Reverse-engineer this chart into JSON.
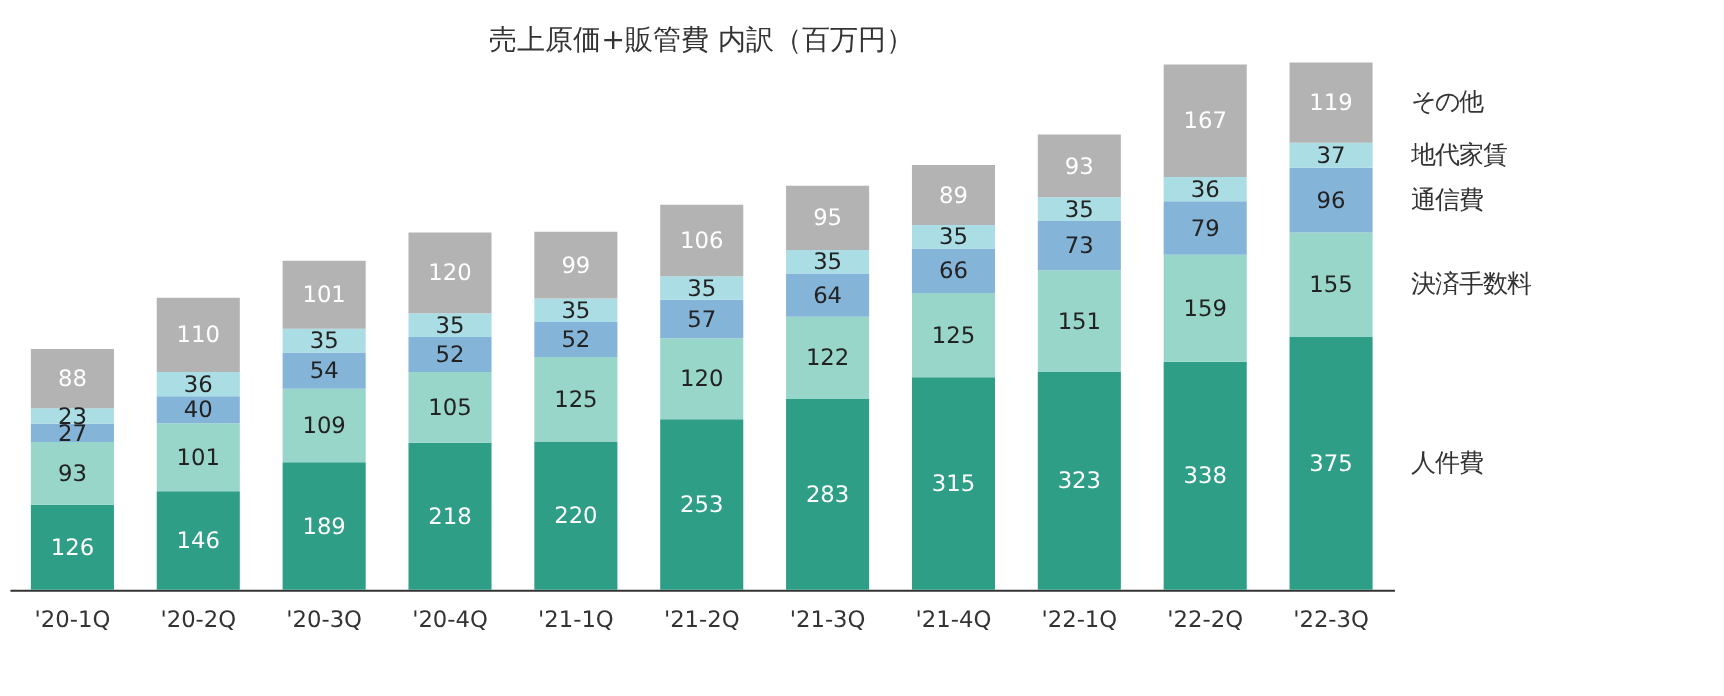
{
  "chart_data": {
    "type": "bar",
    "title": "売上原価+販管費 内訳（百万円）",
    "stacked": true,
    "data_labels": true,
    "categories": [
      "'20-1Q",
      "'20-2Q",
      "'20-3Q",
      "'20-4Q",
      "'21-1Q",
      "'21-2Q",
      "'21-3Q",
      "'21-4Q",
      "'22-1Q",
      "'22-2Q",
      "'22-3Q"
    ],
    "series": [
      {
        "name": "人件費",
        "color": "#2e9e86",
        "values": [
          126,
          146,
          189,
          218,
          220,
          253,
          283,
          315,
          323,
          338,
          375
        ]
      },
      {
        "name": "決済手数料",
        "color": "#97d6c8",
        "values": [
          93,
          101,
          109,
          105,
          125,
          120,
          122,
          125,
          151,
          159,
          155
        ]
      },
      {
        "name": "通信費",
        "color": "#84b4d8",
        "values": [
          27,
          40,
          54,
          52,
          52,
          57,
          64,
          66,
          73,
          79,
          96
        ]
      },
      {
        "name": "地代家賃",
        "color": "#abdde4",
        "values": [
          23,
          36,
          35,
          35,
          35,
          35,
          35,
          35,
          35,
          36,
          37
        ]
      },
      {
        "name": "その他",
        "color": "#b3b3b3",
        "values": [
          88,
          110,
          101,
          120,
          99,
          106,
          95,
          89,
          93,
          167,
          119
        ]
      }
    ]
  }
}
